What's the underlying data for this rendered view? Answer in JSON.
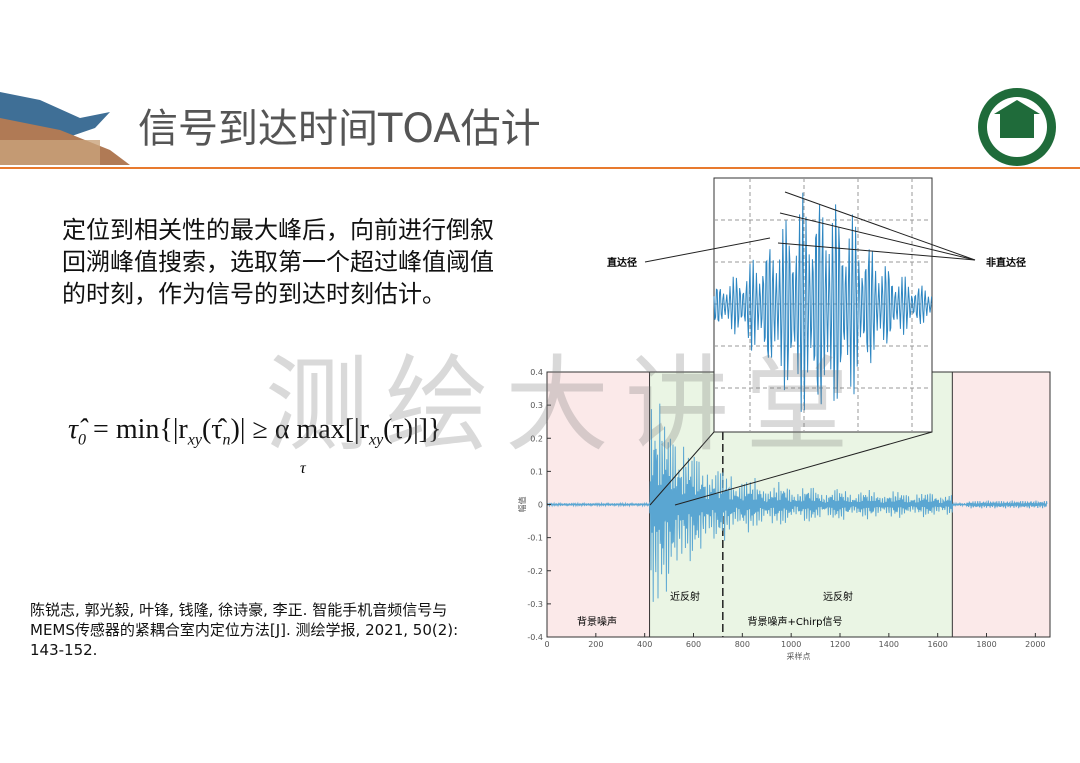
{
  "header": {
    "title": "信号到达时间TOA估计"
  },
  "body": {
    "text": "定位到相关性的最大峰后，向前进行倒叙回溯峰值搜索，选取第一个超过峰值阈值的时刻，作为信号的到达时刻估计。"
  },
  "formula": {
    "parts": [
      "τ̂",
      "0",
      " = min{|r",
      "xy",
      "(τ̂",
      "n",
      ")| ≥ α max[|r",
      "xy",
      "(τ)|]}"
    ],
    "under": "τ"
  },
  "watermark": "测绘大讲堂",
  "reference": "陈锐志, 郭光毅, 叶锋, 钱隆, 徐诗豪, 李正. 智能手机音频信号与MEMS传感器的紧耦合室内定位方法[J]. 测绘学报, 2021, 50(2): 143-152.",
  "figure": {
    "xlabel": "采样点",
    "ylabel": "幅值",
    "xlim": [
      0,
      2060
    ],
    "ylim": [
      -0.4,
      0.4
    ],
    "xticks": [
      0,
      200,
      400,
      600,
      800,
      1000,
      1200,
      1400,
      1600,
      1800,
      2000
    ],
    "yticks": [
      -0.4,
      -0.3,
      -0.2,
      -0.1,
      0,
      0.1,
      0.2,
      0.3,
      0.4
    ],
    "signal_start": 420,
    "chirp_end": 1660,
    "near_far_split": 720,
    "annotations": {
      "direct": "直达径",
      "indirect": "非直达径",
      "near": "近反射",
      "far": "远反射",
      "noise": "背景噪声",
      "noise_chirp": "背景噪声+Chirp信号"
    }
  }
}
